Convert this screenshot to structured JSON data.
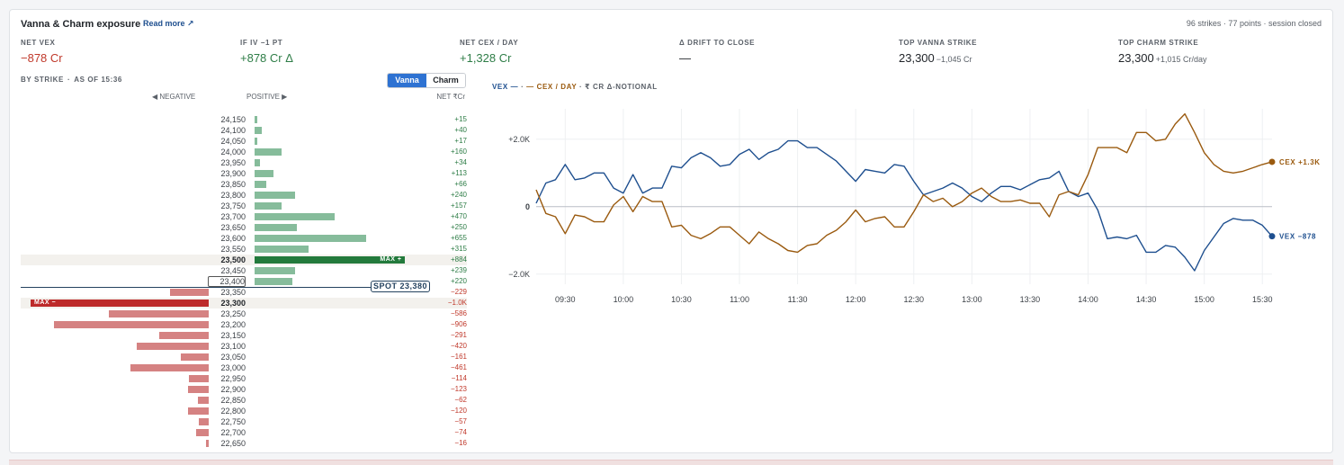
{
  "panel": {
    "title": "Vanna & Charm exposure",
    "read_more": "Read more ↗",
    "meta": "96 strikes · 77 points · session closed"
  },
  "metrics": [
    {
      "label": "NET VEX",
      "value": "−878 Cr",
      "sub": "",
      "tone": "neg"
    },
    {
      "label": "IF IV −1 PT",
      "value": "+878 Cr Δ",
      "sub": "",
      "tone": "pos"
    },
    {
      "label": "NET CEX / DAY",
      "value": "+1,328 Cr",
      "sub": "",
      "tone": "pos"
    },
    {
      "label": "Δ DRIFT TO CLOSE",
      "value": "—",
      "sub": "",
      "tone": "dark"
    },
    {
      "label": "TOP VANNA STRIKE",
      "value": "23,300",
      "sub": "−1,045 Cr",
      "tone": "dark"
    },
    {
      "label": "TOP CHARM STRIKE",
      "value": "23,300",
      "sub": "+1,015 Cr/day",
      "tone": "dark"
    }
  ],
  "ladder": {
    "by_strike": "BY STRIKE",
    "as_of": "AS OF 15:36",
    "toggle": [
      "Vanna",
      "Charm"
    ],
    "active_toggle": "Vanna",
    "col_negative": "◀ NEGATIVE",
    "col_positive": "POSITIVE ▶",
    "col_net": "NET ₹Cr",
    "max_pos_tag": "MAX +",
    "max_neg_tag": "MAX −",
    "spot_label": "SPOT 23,380",
    "max_abs": 1045,
    "rows": [
      {
        "strike": "24,150",
        "value": 15,
        "label": "+15"
      },
      {
        "strike": "24,100",
        "value": 40,
        "label": "+40"
      },
      {
        "strike": "24,050",
        "value": 17,
        "label": "+17"
      },
      {
        "strike": "24,000",
        "value": 160,
        "label": "+160"
      },
      {
        "strike": "23,950",
        "value": 34,
        "label": "+34"
      },
      {
        "strike": "23,900",
        "value": 113,
        "label": "+113"
      },
      {
        "strike": "23,850",
        "value": 66,
        "label": "+66"
      },
      {
        "strike": "23,800",
        "value": 240,
        "label": "+240"
      },
      {
        "strike": "23,750",
        "value": 157,
        "label": "+157"
      },
      {
        "strike": "23,700",
        "value": 470,
        "label": "+470"
      },
      {
        "strike": "23,650",
        "value": 250,
        "label": "+250"
      },
      {
        "strike": "23,600",
        "value": 655,
        "label": "+655"
      },
      {
        "strike": "23,550",
        "value": 315,
        "label": "+315"
      },
      {
        "strike": "23,500",
        "value": 884,
        "label": "+884"
      },
      {
        "strike": "23,450",
        "value": 239,
        "label": "+239"
      },
      {
        "strike": "23,400",
        "value": 220,
        "label": "+220"
      },
      {
        "strike": "23,350",
        "value": -229,
        "label": "−229"
      },
      {
        "strike": "23,300",
        "value": -1045,
        "label": "−1.0K"
      },
      {
        "strike": "23,250",
        "value": -586,
        "label": "−586"
      },
      {
        "strike": "23,200",
        "value": -906,
        "label": "−906"
      },
      {
        "strike": "23,150",
        "value": -291,
        "label": "−291"
      },
      {
        "strike": "23,100",
        "value": -420,
        "label": "−420"
      },
      {
        "strike": "23,050",
        "value": -161,
        "label": "−161"
      },
      {
        "strike": "23,000",
        "value": -461,
        "label": "−461"
      },
      {
        "strike": "22,950",
        "value": -114,
        "label": "−114"
      },
      {
        "strike": "22,900",
        "value": -123,
        "label": "−123"
      },
      {
        "strike": "22,850",
        "value": -62,
        "label": "−62"
      },
      {
        "strike": "22,800",
        "value": -120,
        "label": "−120"
      },
      {
        "strike": "22,750",
        "value": -57,
        "label": "−57"
      },
      {
        "strike": "22,700",
        "value": -74,
        "label": "−74"
      },
      {
        "strike": "22,650",
        "value": -16,
        "label": "−16"
      }
    ]
  },
  "chart_legend": {
    "vex": "VEX —",
    "sep": "·",
    "cex": "— CEX / DAY",
    "unit": "· ₹ CR Δ-NOTIONAL"
  },
  "colors": {
    "vex": "#1e4f8f",
    "cex": "#9a5a0f",
    "pos_bar": "#86bc9b",
    "neg_bar": "#d58282",
    "pos_max": "#237a3c",
    "neg_max": "#bd2a2a"
  },
  "chart_data": {
    "type": "line",
    "xlabel": "",
    "ylabel": "",
    "ylim": [
      -2300,
      2900
    ],
    "xlim": [
      "09:15",
      "15:30"
    ],
    "x_ticks": [
      "09:30",
      "10:00",
      "10:30",
      "11:00",
      "11:30",
      "12:00",
      "12:30",
      "13:00",
      "13:30",
      "14:00",
      "14:30",
      "15:00",
      "15:30"
    ],
    "y_ticks": [
      {
        "value": 2000,
        "label": "+2.0K"
      },
      {
        "value": 0,
        "label": "0"
      },
      {
        "value": -2000,
        "label": "−2.0K"
      }
    ],
    "grid": true,
    "series": [
      {
        "name": "VEX",
        "end_label": "VEX −878",
        "values": [
          [
            "09:15",
            100
          ],
          [
            "09:20",
            700
          ],
          [
            "09:25",
            800
          ],
          [
            "09:30",
            1250
          ],
          [
            "09:35",
            800
          ],
          [
            "09:40",
            850
          ],
          [
            "09:45",
            1000
          ],
          [
            "09:50",
            1000
          ],
          [
            "09:55",
            550
          ],
          [
            "10:00",
            400
          ],
          [
            "10:05",
            950
          ],
          [
            "10:10",
            400
          ],
          [
            "10:15",
            550
          ],
          [
            "10:20",
            550
          ],
          [
            "10:25",
            1200
          ],
          [
            "10:30",
            1150
          ],
          [
            "10:35",
            1450
          ],
          [
            "10:40",
            1600
          ],
          [
            "10:45",
            1450
          ],
          [
            "10:50",
            1200
          ],
          [
            "10:55",
            1250
          ],
          [
            "11:00",
            1550
          ],
          [
            "11:05",
            1700
          ],
          [
            "11:10",
            1400
          ],
          [
            "11:15",
            1600
          ],
          [
            "11:20",
            1700
          ],
          [
            "11:25",
            1950
          ],
          [
            "11:30",
            1950
          ],
          [
            "11:35",
            1750
          ],
          [
            "11:40",
            1750
          ],
          [
            "11:45",
            1550
          ],
          [
            "11:50",
            1350
          ],
          [
            "11:55",
            1050
          ],
          [
            "12:00",
            750
          ],
          [
            "12:05",
            1100
          ],
          [
            "12:10",
            1050
          ],
          [
            "12:15",
            1000
          ],
          [
            "12:20",
            1250
          ],
          [
            "12:25",
            1200
          ],
          [
            "12:30",
            750
          ],
          [
            "12:35",
            350
          ],
          [
            "12:40",
            450
          ],
          [
            "12:45",
            550
          ],
          [
            "12:50",
            700
          ],
          [
            "12:55",
            550
          ],
          [
            "13:00",
            300
          ],
          [
            "13:05",
            150
          ],
          [
            "13:10",
            400
          ],
          [
            "13:15",
            600
          ],
          [
            "13:20",
            600
          ],
          [
            "13:25",
            500
          ],
          [
            "13:30",
            650
          ],
          [
            "13:35",
            800
          ],
          [
            "13:40",
            850
          ],
          [
            "13:45",
            1050
          ],
          [
            "13:50",
            450
          ],
          [
            "13:55",
            300
          ],
          [
            "14:00",
            400
          ],
          [
            "14:05",
            -100
          ],
          [
            "14:10",
            -950
          ],
          [
            "14:15",
            -900
          ],
          [
            "14:20",
            -950
          ],
          [
            "14:25",
            -850
          ],
          [
            "14:30",
            -1350
          ],
          [
            "14:35",
            -1350
          ],
          [
            "14:40",
            -1150
          ],
          [
            "14:45",
            -1200
          ],
          [
            "14:50",
            -1500
          ],
          [
            "14:55",
            -1900
          ],
          [
            "15:00",
            -1300
          ],
          [
            "15:05",
            -900
          ],
          [
            "15:10",
            -500
          ],
          [
            "15:15",
            -350
          ],
          [
            "15:20",
            -400
          ],
          [
            "15:25",
            -400
          ],
          [
            "15:30",
            -550
          ],
          [
            "15:35",
            -878
          ]
        ]
      },
      {
        "name": "CEX / DAY",
        "end_label": "CEX +1.3K",
        "values": [
          [
            "09:15",
            500
          ],
          [
            "09:20",
            -200
          ],
          [
            "09:25",
            -300
          ],
          [
            "09:30",
            -800
          ],
          [
            "09:35",
            -250
          ],
          [
            "09:40",
            -300
          ],
          [
            "09:45",
            -450
          ],
          [
            "09:50",
            -450
          ],
          [
            "09:55",
            50
          ],
          [
            "10:00",
            300
          ],
          [
            "10:05",
            -150
          ],
          [
            "10:10",
            300
          ],
          [
            "10:15",
            150
          ],
          [
            "10:20",
            150
          ],
          [
            "10:25",
            -600
          ],
          [
            "10:30",
            -550
          ],
          [
            "10:35",
            -850
          ],
          [
            "10:40",
            -950
          ],
          [
            "10:45",
            -800
          ],
          [
            "10:50",
            -600
          ],
          [
            "10:55",
            -600
          ],
          [
            "11:00",
            -850
          ],
          [
            "11:05",
            -1100
          ],
          [
            "11:10",
            -750
          ],
          [
            "11:15",
            -950
          ],
          [
            "11:20",
            -1100
          ],
          [
            "11:25",
            -1300
          ],
          [
            "11:30",
            -1350
          ],
          [
            "11:35",
            -1150
          ],
          [
            "11:40",
            -1100
          ],
          [
            "11:45",
            -850
          ],
          [
            "11:50",
            -700
          ],
          [
            "11:55",
            -450
          ],
          [
            "12:00",
            -100
          ],
          [
            "12:05",
            -450
          ],
          [
            "12:10",
            -350
          ],
          [
            "12:15",
            -300
          ],
          [
            "12:20",
            -600
          ],
          [
            "12:25",
            -600
          ],
          [
            "12:30",
            -150
          ],
          [
            "12:35",
            350
          ],
          [
            "12:40",
            150
          ],
          [
            "12:45",
            250
          ],
          [
            "12:50",
            0
          ],
          [
            "12:55",
            150
          ],
          [
            "13:00",
            400
          ],
          [
            "13:05",
            550
          ],
          [
            "13:10",
            300
          ],
          [
            "13:15",
            150
          ],
          [
            "13:20",
            150
          ],
          [
            "13:25",
            200
          ],
          [
            "13:30",
            100
          ],
          [
            "13:35",
            100
          ],
          [
            "13:40",
            -300
          ],
          [
            "13:45",
            350
          ],
          [
            "13:50",
            450
          ],
          [
            "13:55",
            350
          ],
          [
            "14:00",
            950
          ],
          [
            "14:05",
            1750
          ],
          [
            "14:10",
            1750
          ],
          [
            "14:15",
            1750
          ],
          [
            "14:20",
            1600
          ],
          [
            "14:25",
            2200
          ],
          [
            "14:30",
            2200
          ],
          [
            "14:35",
            1950
          ],
          [
            "14:40",
            2000
          ],
          [
            "14:45",
            2450
          ],
          [
            "14:50",
            2750
          ],
          [
            "14:55",
            2200
          ],
          [
            "15:00",
            1600
          ],
          [
            "15:05",
            1250
          ],
          [
            "15:10",
            1050
          ],
          [
            "15:15",
            1000
          ],
          [
            "15:20",
            1050
          ],
          [
            "15:25",
            1150
          ],
          [
            "15:30",
            1250
          ],
          [
            "15:35",
            1328
          ]
        ]
      }
    ]
  }
}
